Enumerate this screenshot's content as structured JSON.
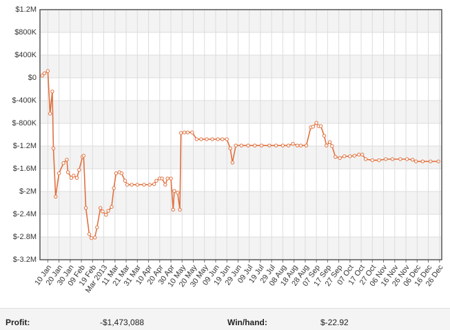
{
  "chart_data": {
    "type": "line",
    "x": [
      "2013-01-05",
      "2013-01-07",
      "2013-01-10",
      "2013-01-12",
      "2013-01-14",
      "2013-01-15",
      "2013-01-17",
      "2013-01-20",
      "2013-01-24",
      "2013-01-27",
      "2013-01-28",
      "2013-01-31",
      "2013-02-02",
      "2013-02-05",
      "2013-02-07",
      "2013-02-10",
      "2013-02-11",
      "2013-02-13",
      "2013-02-16",
      "2013-02-18",
      "2013-02-21",
      "2013-02-23",
      "2013-02-26",
      "2013-02-28",
      "2013-03-03",
      "2013-03-05",
      "2013-03-08",
      "2013-03-10",
      "2013-03-12",
      "2013-03-15",
      "2013-03-17",
      "2013-03-20",
      "2013-03-22",
      "2013-03-26",
      "2013-03-31",
      "2013-04-06",
      "2013-04-11",
      "2013-04-15",
      "2013-04-17",
      "2013-04-20",
      "2013-04-22",
      "2013-04-25",
      "2013-04-27",
      "2013-04-30",
      "2013-05-02",
      "2013-05-03",
      "2013-05-06",
      "2013-05-08",
      "2013-05-09",
      "2013-05-12",
      "2013-05-15",
      "2013-05-19",
      "2013-05-23",
      "2013-05-27",
      "2013-06-01",
      "2013-06-06",
      "2013-06-11",
      "2013-06-15",
      "2013-06-19",
      "2013-06-22",
      "2013-06-24",
      "2013-06-27",
      "2013-07-02",
      "2013-07-08",
      "2013-07-14",
      "2013-07-20",
      "2013-07-27",
      "2013-08-02",
      "2013-08-08",
      "2013-08-13",
      "2013-08-17",
      "2013-08-21",
      "2013-08-24",
      "2013-08-29",
      "2013-09-02",
      "2013-09-04",
      "2013-09-07",
      "2013-09-09",
      "2013-09-11",
      "2013-09-14",
      "2013-09-16",
      "2013-09-19",
      "2013-09-21",
      "2013-09-24",
      "2013-09-28",
      "2013-10-02",
      "2013-10-07",
      "2013-10-11",
      "2013-10-15",
      "2013-10-18",
      "2013-10-21",
      "2013-10-27",
      "2013-11-02",
      "2013-11-08",
      "2013-11-14",
      "2013-11-21",
      "2013-11-27",
      "2013-12-02",
      "2013-12-05",
      "2013-12-11",
      "2013-12-18",
      "2013-12-25"
    ],
    "series": [
      {
        "color": "#e0703e",
        "values": [
          40000,
          80000,
          120000,
          -630000,
          -240000,
          -1240000,
          -2090000,
          -1680000,
          -1500000,
          -1440000,
          -1660000,
          -1760000,
          -1720000,
          -1760000,
          -1620000,
          -1390000,
          -1370000,
          -2290000,
          -2750000,
          -2820000,
          -2810000,
          -2630000,
          -2290000,
          -2350000,
          -2410000,
          -2340000,
          -2270000,
          -1940000,
          -1680000,
          -1660000,
          -1680000,
          -1810000,
          -1880000,
          -1880000,
          -1880000,
          -1880000,
          -1880000,
          -1870000,
          -1810000,
          -1770000,
          -1770000,
          -1880000,
          -1770000,
          -1770000,
          -2320000,
          -1990000,
          -2020000,
          -2320000,
          -970000,
          -960000,
          -960000,
          -960000,
          -1080000,
          -1080000,
          -1080000,
          -1080000,
          -1080000,
          -1080000,
          -1080000,
          -1240000,
          -1490000,
          -1190000,
          -1190000,
          -1190000,
          -1190000,
          -1190000,
          -1190000,
          -1190000,
          -1190000,
          -1190000,
          -1160000,
          -1190000,
          -1190000,
          -1190000,
          -870000,
          -860000,
          -790000,
          -850000,
          -850000,
          -1020000,
          -1190000,
          -1130000,
          -1200000,
          -1390000,
          -1410000,
          -1380000,
          -1380000,
          -1370000,
          -1350000,
          -1350000,
          -1430000,
          -1450000,
          -1450000,
          -1430000,
          -1430000,
          -1430000,
          -1430000,
          -1440000,
          -1470000,
          -1470000,
          -1470000,
          -1470000
        ]
      }
    ],
    "xlim": [
      "2013-01-03",
      "2013-12-28"
    ],
    "xticks": [
      {
        "value": "2013-01-10",
        "label": "10 Jan"
      },
      {
        "value": "2013-01-20",
        "label": "20 Jan"
      },
      {
        "value": "2013-01-30",
        "label": "30 Jan"
      },
      {
        "value": "2013-02-09",
        "label": "09 Feb"
      },
      {
        "value": "2013-02-19",
        "label": "19 Feb"
      },
      {
        "value": "2013-03-01",
        "label": "Mar 2013"
      },
      {
        "value": "2013-03-11",
        "label": "11 Mar"
      },
      {
        "value": "2013-03-21",
        "label": "21 Mar"
      },
      {
        "value": "2013-03-31",
        "label": "31 Mar"
      },
      {
        "value": "2013-04-10",
        "label": "10 Apr"
      },
      {
        "value": "2013-04-20",
        "label": "20 Apr"
      },
      {
        "value": "2013-04-30",
        "label": "30 Apr"
      },
      {
        "value": "2013-05-10",
        "label": "10 May"
      },
      {
        "value": "2013-05-20",
        "label": "20 May"
      },
      {
        "value": "2013-05-30",
        "label": "30 May"
      },
      {
        "value": "2013-06-09",
        "label": "09 Jun"
      },
      {
        "value": "2013-06-19",
        "label": "19 Jun"
      },
      {
        "value": "2013-06-29",
        "label": "29 Jun"
      },
      {
        "value": "2013-07-09",
        "label": "09 Jul"
      },
      {
        "value": "2013-07-19",
        "label": "19 Jul"
      },
      {
        "value": "2013-07-29",
        "label": "29 Jul"
      },
      {
        "value": "2013-08-08",
        "label": "08 Aug"
      },
      {
        "value": "2013-08-18",
        "label": "18 Aug"
      },
      {
        "value": "2013-08-28",
        "label": "28 Aug"
      },
      {
        "value": "2013-09-07",
        "label": "07 Sep"
      },
      {
        "value": "2013-09-17",
        "label": "17 Sep"
      },
      {
        "value": "2013-09-27",
        "label": "27 Sep"
      },
      {
        "value": "2013-10-07",
        "label": "07 Oct"
      },
      {
        "value": "2013-10-17",
        "label": "17 Oct"
      },
      {
        "value": "2013-10-27",
        "label": "27 Oct"
      },
      {
        "value": "2013-11-06",
        "label": "06 Nov"
      },
      {
        "value": "2013-11-16",
        "label": "16 Nov"
      },
      {
        "value": "2013-11-26",
        "label": "26 Nov"
      },
      {
        "value": "2013-12-06",
        "label": "06 Dec"
      },
      {
        "value": "2013-12-16",
        "label": "16 Dec"
      },
      {
        "value": "2013-12-26",
        "label": "26 Dec"
      }
    ],
    "ylim": [
      -3200000,
      1200000
    ],
    "yticks": [
      {
        "value": -3200000,
        "label": "$-3.2M"
      },
      {
        "value": -2800000,
        "label": "$-2.8M"
      },
      {
        "value": -2400000,
        "label": "$-2.4M"
      },
      {
        "value": -2000000,
        "label": "$-2M"
      },
      {
        "value": -1600000,
        "label": "$-1.6M"
      },
      {
        "value": -1200000,
        "label": "$-1.2M"
      },
      {
        "value": -800000,
        "label": "$-800K"
      },
      {
        "value": -400000,
        "label": "$-400K"
      },
      {
        "value": 0,
        "label": "$0"
      },
      {
        "value": 400000,
        "label": "$400K"
      },
      {
        "value": 800000,
        "label": "$800K"
      },
      {
        "value": 1200000,
        "label": "$1.2M"
      }
    ],
    "grid": true
  },
  "stats": [
    {
      "label": "Profit:",
      "value": "-$1,473,088"
    },
    {
      "label": "Win/hand:",
      "value": "$-22.92"
    }
  ]
}
